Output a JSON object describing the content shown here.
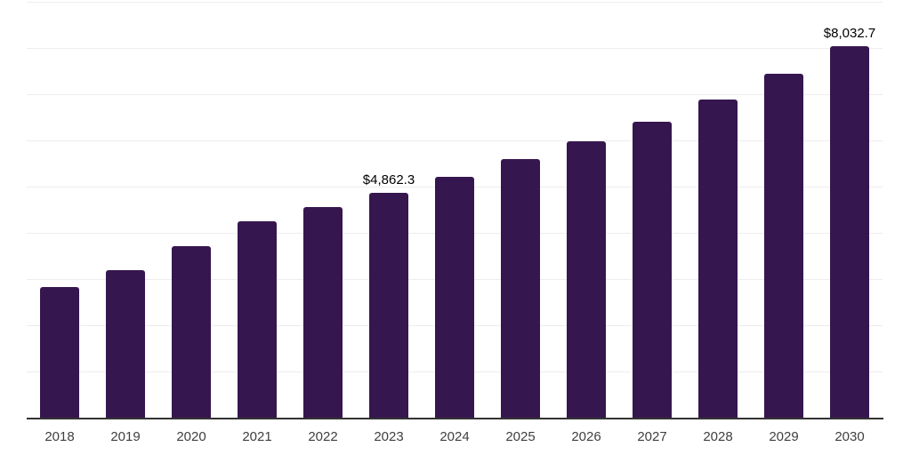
{
  "chart_data": {
    "type": "bar",
    "title": "",
    "xlabel": "",
    "ylabel": "",
    "categories": [
      "2018",
      "2019",
      "2020",
      "2021",
      "2022",
      "2023",
      "2024",
      "2025",
      "2026",
      "2027",
      "2028",
      "2029",
      "2030"
    ],
    "values": [
      2827,
      3190,
      3712,
      4250,
      4558,
      4862.3,
      5212,
      5596,
      5981,
      6404,
      6885,
      7442,
      8032.7
    ],
    "data_labels": [
      {
        "category": "2023",
        "text": "$4,862.3"
      },
      {
        "category": "2030",
        "text": "$8,032.7"
      }
    ],
    "ylim": [
      0,
      9000
    ],
    "grid_step": 1000,
    "grid": true,
    "legend": false,
    "y_tick_labels_shown": false,
    "colors": {
      "bar": "#36164F",
      "gridline": "#ededed",
      "axis_line": "#333333",
      "tick_label": "#3f3f3f",
      "data_label": "#000000",
      "background": "#ffffff"
    }
  }
}
